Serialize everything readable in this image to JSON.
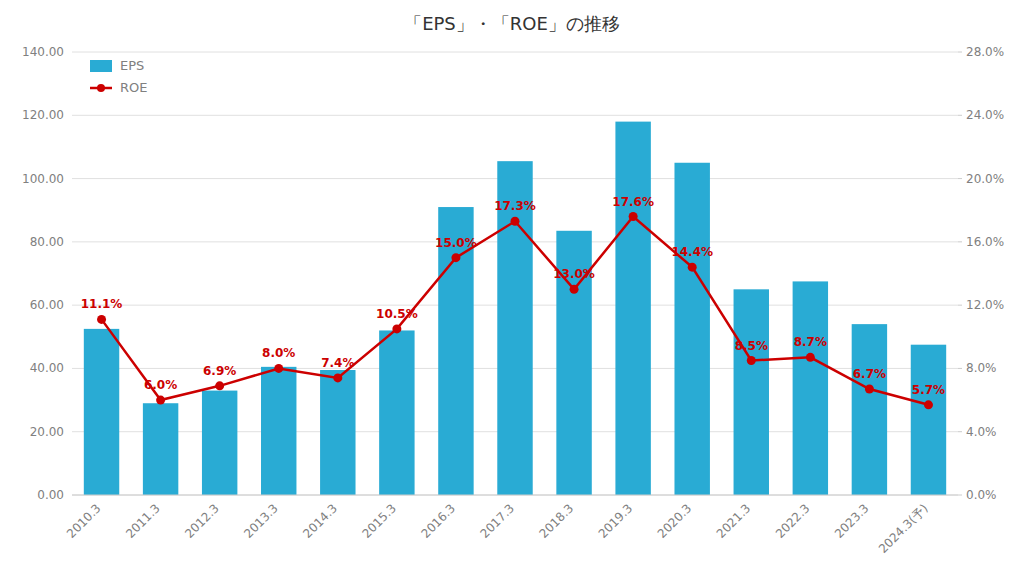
{
  "chart_data": {
    "type": "bar",
    "title": "「EPS」・「ROE」の推移",
    "categories": [
      "2010.3",
      "2011.3",
      "2012.3",
      "2013.3",
      "2014.3",
      "2015.3",
      "2016.3",
      "2017.3",
      "2018.3",
      "2019.3",
      "2020.3",
      "2021.3",
      "2022.3",
      "2023.3",
      "2024.3(予)"
    ],
    "series": [
      {
        "name": "EPS",
        "type": "bar",
        "color": "#29ABD4",
        "values": [
          52.5,
          29.0,
          33.0,
          40.5,
          39.5,
          52.0,
          91.0,
          105.5,
          83.5,
          118.0,
          105.0,
          65.0,
          67.5,
          54.0,
          47.5
        ]
      },
      {
        "name": "ROE",
        "type": "line",
        "color": "#CC0000",
        "marker": "circle",
        "axis": "y2",
        "data_labels": true,
        "values": [
          11.1,
          6.0,
          6.9,
          8.0,
          7.4,
          10.5,
          15.0,
          17.3,
          13.0,
          17.6,
          14.4,
          8.5,
          8.7,
          6.7,
          5.7
        ],
        "value_labels": [
          "11.1%",
          "6.0%",
          "6.9%",
          "8.0%",
          "7.4%",
          "10.5%",
          "15.0%",
          "17.3%",
          "13.0%",
          "17.6%",
          "14.4%",
          "8.5%",
          "8.7%",
          "6.7%",
          "5.7%"
        ]
      }
    ],
    "ylim": [
      0,
      140
    ],
    "yticks": [
      {
        "value": 0,
        "label": "0.00"
      },
      {
        "value": 20,
        "label": "20.00"
      },
      {
        "value": 40,
        "label": "40.00"
      },
      {
        "value": 60,
        "label": "60.00"
      },
      {
        "value": 80,
        "label": "80.00"
      },
      {
        "value": 100,
        "label": "100.00"
      },
      {
        "value": 120,
        "label": "120.00"
      },
      {
        "value": 140,
        "label": "140.00"
      }
    ],
    "y2lim": [
      0,
      28
    ],
    "y2ticks": [
      {
        "value": 0,
        "label": "0.0%"
      },
      {
        "value": 4,
        "label": "4.0%"
      },
      {
        "value": 8,
        "label": "8.0%"
      },
      {
        "value": 12,
        "label": "12.0%"
      },
      {
        "value": 16,
        "label": "16.0%"
      },
      {
        "value": 20,
        "label": "20.0%"
      },
      {
        "value": 24,
        "label": "24.0%"
      },
      {
        "value": 28,
        "label": "28.0%"
      }
    ],
    "grid": true,
    "legend": "upper-left"
  }
}
